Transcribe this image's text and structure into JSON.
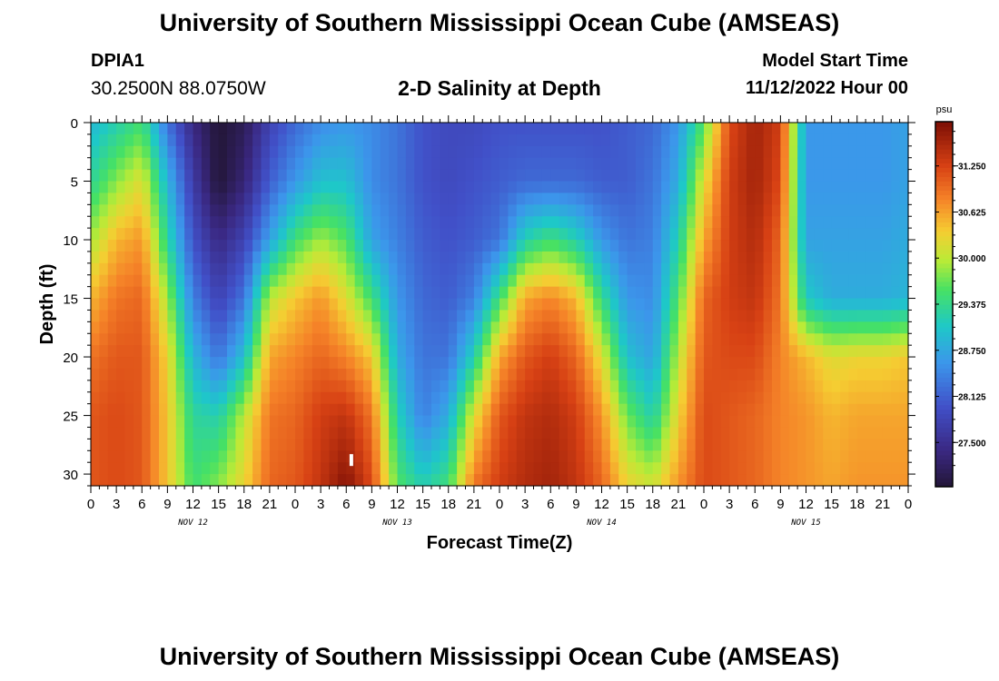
{
  "header": {
    "title": "University of Southern Mississippi Ocean Cube (AMSEAS)",
    "station_id": "DPIA1",
    "station_coords": "30.2500N  88.0750W",
    "plot_title": "2-D Salinity at Depth",
    "model_start_label": "Model Start Time",
    "model_start_value": "11/12/2022 Hour 00"
  },
  "footer": {
    "title": "University of Southern Mississippi Ocean Cube (AMSEAS)"
  },
  "chart_data": {
    "type": "heatmap",
    "xlabel": "Forecast Time(Z)",
    "ylabel": "Depth (ft)",
    "x_range_hours": [
      0,
      96
    ],
    "y_range_ft": [
      0,
      31
    ],
    "x_tick_labels": [
      "0",
      "3",
      "6",
      "9",
      "12",
      "15",
      "18",
      "21",
      "0",
      "3",
      "6",
      "9",
      "12",
      "15",
      "18",
      "21",
      "0",
      "3",
      "6",
      "9",
      "12",
      "15",
      "18",
      "21",
      "0",
      "3",
      "6",
      "9",
      "12",
      "15",
      "18",
      "21",
      "0"
    ],
    "y_ticks": [
      0,
      5,
      10,
      15,
      20,
      25,
      30
    ],
    "day_labels": [
      {
        "text": "NOV 12",
        "hour": 12
      },
      {
        "text": "NOV 13",
        "hour": 36
      },
      {
        "text": "NOV 14",
        "hour": 60
      },
      {
        "text": "NOV 15",
        "hour": 84
      }
    ],
    "colorbar": {
      "unit": "psu",
      "min": 26.9,
      "max": 31.85,
      "tick_values": [
        27.5,
        28.125,
        28.75,
        29.375,
        30.0,
        30.625,
        31.25
      ],
      "tick_labels": [
        "27.500",
        "28.125",
        "28.750",
        "29.375",
        "30.000",
        "30.625",
        "31.250"
      ]
    },
    "profile_depths_ft": [
      0,
      5,
      10,
      15,
      20,
      25,
      31
    ],
    "profiles": [
      {
        "hour": 0,
        "values": [
          28.9,
          29.3,
          29.9,
          30.5,
          30.9,
          31.1,
          31.1
        ]
      },
      {
        "hour": 3,
        "values": [
          29.2,
          29.8,
          30.5,
          30.9,
          31.1,
          31.2,
          31.2
        ]
      },
      {
        "hour": 6,
        "values": [
          29.5,
          30.2,
          30.7,
          31.0,
          31.1,
          31.1,
          31.1
        ]
      },
      {
        "hour": 9,
        "values": [
          28.3,
          28.9,
          29.3,
          29.9,
          30.3,
          30.4,
          30.4
        ]
      },
      {
        "hour": 12,
        "values": [
          27.4,
          27.7,
          28.0,
          28.4,
          28.9,
          29.3,
          29.5
        ]
      },
      {
        "hour": 15,
        "values": [
          26.9,
          26.9,
          27.4,
          27.8,
          28.3,
          29.2,
          29.8
        ]
      },
      {
        "hour": 18,
        "values": [
          27.1,
          27.3,
          27.8,
          28.3,
          29.0,
          30.0,
          30.3
        ]
      },
      {
        "hour": 21,
        "values": [
          27.8,
          28.1,
          28.7,
          30.0,
          30.6,
          30.9,
          31.0
        ]
      },
      {
        "hour": 24,
        "values": [
          28.2,
          28.6,
          29.5,
          30.4,
          30.8,
          31.0,
          31.1
        ]
      },
      {
        "hour": 27,
        "values": [
          28.5,
          29.0,
          29.9,
          30.7,
          31.0,
          31.3,
          31.4
        ]
      },
      {
        "hour": 30,
        "values": [
          28.6,
          29.0,
          29.6,
          30.2,
          30.8,
          31.4,
          31.8
        ]
      },
      {
        "hour": 33,
        "values": [
          28.5,
          28.5,
          28.7,
          29.5,
          30.4,
          30.9,
          31.2
        ]
      },
      {
        "hour": 36,
        "values": [
          28.3,
          28.3,
          28.4,
          28.6,
          28.8,
          29.2,
          29.6
        ]
      },
      {
        "hour": 39,
        "values": [
          28.0,
          28.0,
          28.1,
          28.2,
          28.3,
          28.4,
          29.2
        ]
      },
      {
        "hour": 42,
        "values": [
          27.9,
          27.9,
          28.0,
          28.1,
          28.3,
          28.8,
          29.5
        ]
      },
      {
        "hour": 45,
        "values": [
          27.9,
          28.0,
          28.1,
          28.4,
          29.2,
          30.2,
          30.9
        ]
      },
      {
        "hour": 48,
        "values": [
          28.0,
          28.1,
          28.3,
          29.5,
          30.6,
          31.1,
          31.3
        ]
      },
      {
        "hour": 51,
        "values": [
          28.0,
          28.2,
          29.2,
          30.6,
          31.1,
          31.4,
          31.5
        ]
      },
      {
        "hour": 54,
        "values": [
          28.0,
          28.2,
          29.5,
          30.8,
          31.3,
          31.5,
          31.6
        ]
      },
      {
        "hour": 57,
        "values": [
          28.0,
          28.2,
          29.2,
          30.5,
          31.0,
          31.3,
          31.4
        ]
      },
      {
        "hour": 60,
        "values": [
          28.0,
          28.1,
          28.6,
          29.4,
          30.2,
          30.7,
          31.0
        ]
      },
      {
        "hour": 63,
        "values": [
          28.1,
          28.1,
          28.3,
          28.6,
          29.0,
          29.7,
          30.3
        ]
      },
      {
        "hour": 66,
        "values": [
          28.2,
          28.3,
          28.4,
          28.5,
          28.7,
          29.2,
          30.1
        ]
      },
      {
        "hour": 69,
        "values": [
          28.6,
          28.8,
          29.2,
          29.6,
          30.0,
          30.3,
          30.7
        ]
      },
      {
        "hour": 72,
        "values": [
          29.6,
          30.2,
          30.6,
          31.0,
          31.1,
          31.2,
          31.2
        ]
      },
      {
        "hour": 75,
        "values": [
          31.2,
          31.3,
          31.3,
          31.3,
          31.2,
          31.1,
          31.1
        ]
      },
      {
        "hour": 78,
        "values": [
          31.6,
          31.6,
          31.5,
          31.4,
          31.2,
          31.0,
          31.0
        ]
      },
      {
        "hour": 81,
        "values": [
          31.3,
          31.2,
          31.0,
          30.9,
          30.8,
          30.8,
          30.8
        ]
      },
      {
        "hour": 84,
        "values": [
          28.6,
          28.6,
          28.7,
          29.1,
          30.5,
          30.7,
          30.7
        ]
      },
      {
        "hour": 87,
        "values": [
          28.6,
          28.6,
          28.7,
          28.8,
          30.2,
          30.5,
          30.6
        ]
      },
      {
        "hour": 90,
        "values": [
          28.6,
          28.6,
          28.7,
          28.8,
          30.3,
          30.6,
          30.7
        ]
      },
      {
        "hour": 93,
        "values": [
          28.6,
          28.6,
          28.7,
          28.8,
          30.3,
          30.6,
          30.7
        ]
      },
      {
        "hour": 96,
        "values": [
          28.7,
          28.7,
          28.8,
          28.9,
          30.4,
          30.6,
          30.7
        ]
      }
    ]
  }
}
